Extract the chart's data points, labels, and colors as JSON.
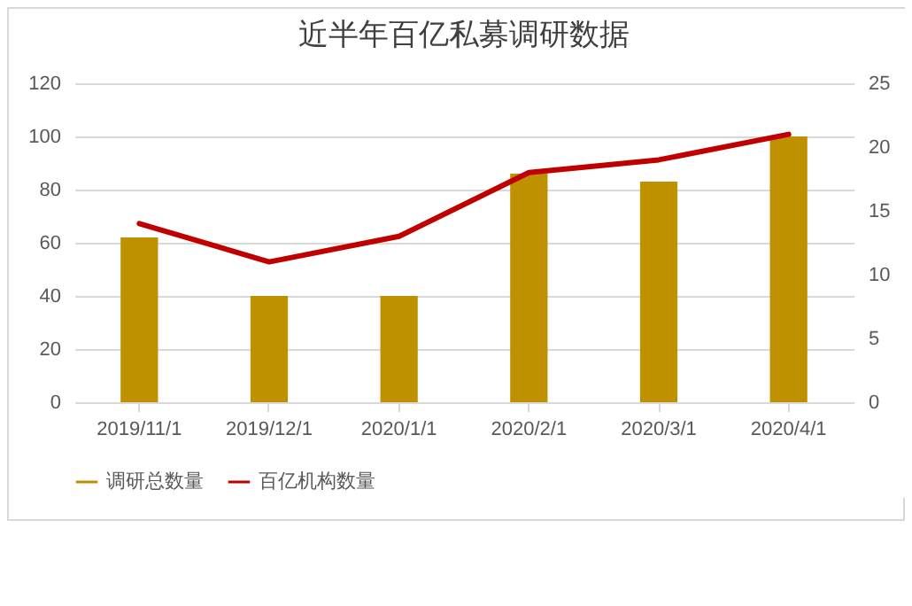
{
  "chart_data": {
    "type": "bar",
    "title": "近半年百亿私募调研数据",
    "categories": [
      "2019/11/1",
      "2019/12/1",
      "2020/1/1",
      "2020/2/1",
      "2020/3/1",
      "2020/4/1"
    ],
    "series": [
      {
        "name": "调研总数量",
        "color": "#bf9000",
        "values": [
          62,
          40,
          40,
          86,
          83,
          100
        ]
      },
      {
        "name": "百亿机构数量",
        "type": "line",
        "axis": "y2",
        "color": "#c00000",
        "values": [
          14,
          11,
          13,
          18,
          19,
          21
        ]
      }
    ],
    "ylim": [
      0,
      120
    ],
    "yticks": [
      0,
      20,
      40,
      60,
      80,
      100,
      120
    ],
    "y2lim": [
      0,
      25
    ],
    "y2ticks": [
      0,
      5,
      10,
      15,
      20,
      25
    ],
    "grid": "y",
    "legend": "bottom"
  }
}
